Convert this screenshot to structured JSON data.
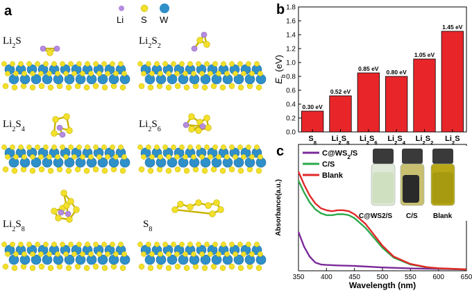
{
  "panel_a": {
    "letter": "a",
    "legend": [
      {
        "label": "Li",
        "color": "#b58be0"
      },
      {
        "label": "S",
        "color": "#f2e02a"
      },
      {
        "label": "W",
        "color": "#2f8fc9"
      }
    ],
    "structures": [
      {
        "label": "Li2S"
      },
      {
        "label": "Li2S2"
      },
      {
        "label": "Li2S4"
      },
      {
        "label": "Li2S6"
      },
      {
        "label": "Li2S8"
      },
      {
        "label": "S8"
      }
    ]
  },
  "chart_data": [
    {
      "panel": "b",
      "type": "bar",
      "title": "",
      "ylabel": "Eb (eV)",
      "ylim": [
        0,
        1.8
      ],
      "yticks": [
        0.0,
        0.2,
        0.4,
        0.6,
        0.8,
        1.0,
        1.2,
        1.4,
        1.6,
        1.8
      ],
      "categories": [
        "S8",
        "Li2S8",
        "Li2S6",
        "Li2S4",
        "Li2S2",
        "Li2S"
      ],
      "values": [
        0.3,
        0.52,
        0.85,
        0.8,
        1.05,
        1.45
      ],
      "data_labels": [
        "0.30 eV",
        "0.52 eV",
        "0.85 eV",
        "0.80 eV",
        "1.05 eV",
        "1.45 eV"
      ],
      "bar_color": "#e8262a",
      "grid": false
    },
    {
      "panel": "c",
      "type": "line",
      "xlabel": "Wavelength (nm)",
      "ylabel": "Absorbance(a.u.)",
      "xlim": [
        350,
        650
      ],
      "xticks": [
        350,
        400,
        450,
        500,
        550,
        600,
        650
      ],
      "legend_position": "top-left",
      "series": [
        {
          "name": "C@WS2/S",
          "color": "#7a2a9a",
          "x": [
            350,
            360,
            370,
            380,
            390,
            400,
            420,
            450,
            500,
            550,
            600,
            650
          ],
          "y": [
            0.38,
            0.23,
            0.13,
            0.07,
            0.05,
            0.045,
            0.04,
            0.035,
            0.02,
            0.01,
            0.005,
            0.0
          ]
        },
        {
          "name": "C/S",
          "color": "#2aa84a",
          "x": [
            350,
            360,
            370,
            380,
            390,
            400,
            410,
            420,
            430,
            440,
            450,
            470,
            500,
            520,
            550,
            580,
            600,
            650
          ],
          "y": [
            0.9,
            0.78,
            0.68,
            0.61,
            0.57,
            0.55,
            0.55,
            0.56,
            0.56,
            0.55,
            0.52,
            0.42,
            0.22,
            0.12,
            0.05,
            0.02,
            0.01,
            0.0
          ]
        },
        {
          "name": "Blank",
          "color": "#e02828",
          "x": [
            350,
            360,
            370,
            380,
            390,
            400,
            410,
            420,
            430,
            440,
            450,
            470,
            500,
            520,
            550,
            580,
            600,
            650
          ],
          "y": [
            0.99,
            0.86,
            0.75,
            0.67,
            0.62,
            0.6,
            0.59,
            0.6,
            0.6,
            0.59,
            0.56,
            0.46,
            0.24,
            0.13,
            0.055,
            0.022,
            0.012,
            0.0
          ]
        }
      ]
    }
  ],
  "panel_b": {
    "letter": "b"
  },
  "panel_c": {
    "letter": "c",
    "photo_labels": [
      "C@WS2/S",
      "C/S",
      "Blank"
    ]
  }
}
